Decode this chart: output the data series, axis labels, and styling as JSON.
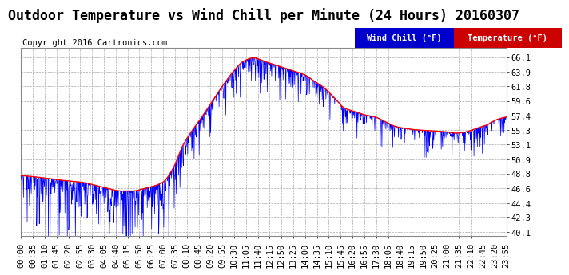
{
  "title": "Outdoor Temperature vs Wind Chill per Minute (24 Hours) 20160307",
  "copyright": "Copyright 2016 Cartronics.com",
  "yticks": [
    40.1,
    42.3,
    44.4,
    46.6,
    48.8,
    50.9,
    53.1,
    55.3,
    57.4,
    59.6,
    61.8,
    63.9,
    66.1
  ],
  "ylim": [
    39.5,
    67.5
  ],
  "xtick_labels": [
    "00:00",
    "00:35",
    "01:10",
    "01:45",
    "02:20",
    "02:55",
    "03:30",
    "04:05",
    "04:40",
    "05:15",
    "05:50",
    "06:25",
    "07:00",
    "07:35",
    "08:10",
    "08:45",
    "09:20",
    "09:55",
    "10:30",
    "11:05",
    "11:40",
    "12:15",
    "12:50",
    "13:25",
    "14:00",
    "14:35",
    "15:10",
    "15:45",
    "16:20",
    "16:55",
    "17:30",
    "18:05",
    "18:40",
    "19:15",
    "19:50",
    "20:25",
    "21:00",
    "21:35",
    "22:10",
    "22:45",
    "23:20",
    "23:55"
  ],
  "temp_color": "#ff0000",
  "wind_color": "#0000ff",
  "plot_bg": "#ffffff",
  "fig_bg": "#ffffff",
  "grid_color": "#aaaaaa",
  "legend_wind_bg": "#0000cc",
  "legend_temp_bg": "#cc0000",
  "title_fontsize": 12,
  "tick_fontsize": 7.5,
  "copyright_fontsize": 7.5
}
